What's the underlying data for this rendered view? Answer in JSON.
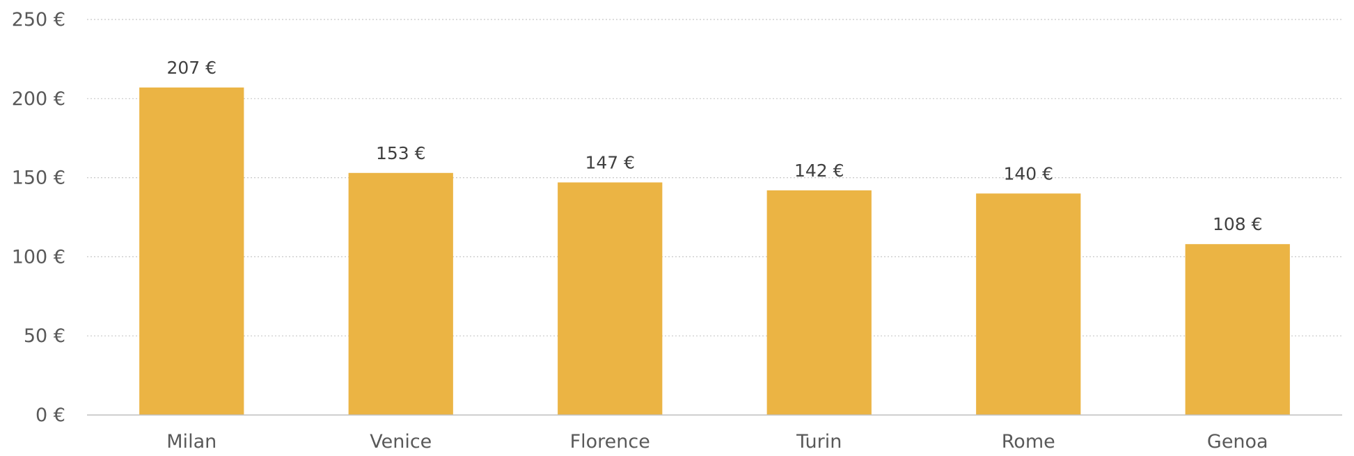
{
  "chart_data": {
    "type": "bar",
    "categories": [
      "Milan",
      "Venice",
      "Florence",
      "Turin",
      "Rome",
      "Genoa"
    ],
    "values": [
      207,
      153,
      147,
      142,
      140,
      108
    ],
    "data_labels": [
      "207 €",
      "153 €",
      "147 €",
      "142 €",
      "140 €",
      "108 €"
    ],
    "y_ticks": [
      0,
      50,
      100,
      150,
      200,
      250
    ],
    "y_tick_labels": [
      "0 €",
      "50 €",
      "100 €",
      "150 €",
      "200 €",
      "250 €"
    ],
    "ylim": [
      0,
      250
    ],
    "grid": true,
    "legend": "none",
    "bar_color": "#EBB444"
  }
}
